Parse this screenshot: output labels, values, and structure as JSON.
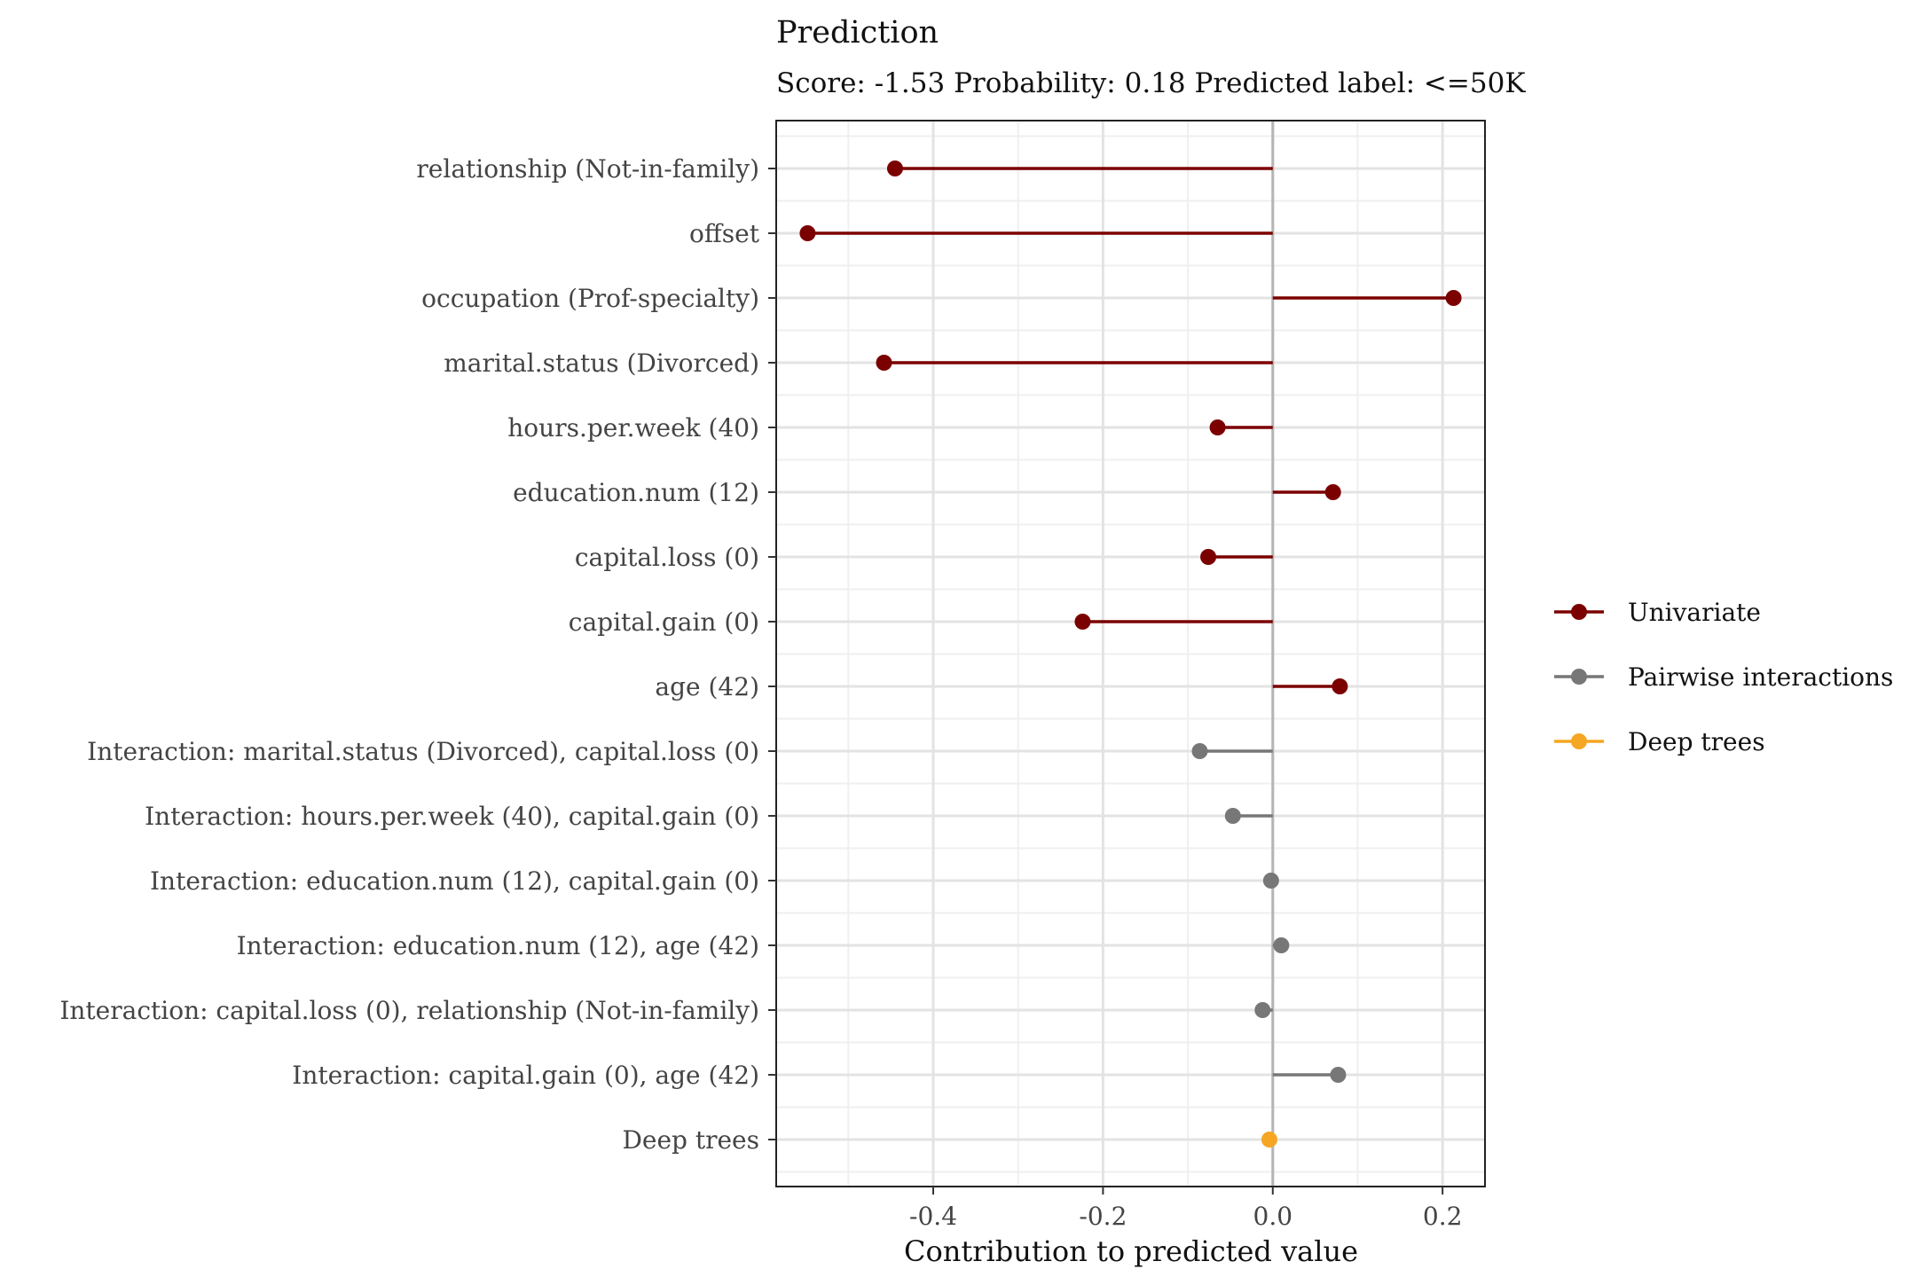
{
  "chart_data": {
    "type": "lollipop",
    "title": "Prediction",
    "subtitle": "Score: -1.53 Probability: 0.18 Predicted label: <=50K",
    "xlabel": "Contribution to predicted value",
    "ylabel": "",
    "xlim": [
      -0.585,
      0.25
    ],
    "xticks": [
      -0.4,
      -0.2,
      0.0,
      0.2
    ],
    "xtick_labels": [
      "-0.4",
      "-0.2",
      "0.0",
      "0.2"
    ],
    "grid": true,
    "legend_position": "right",
    "legend": [
      {
        "name": "Univariate",
        "color": "#7b0000"
      },
      {
        "name": "Pairwise interactions",
        "color": "#777777"
      },
      {
        "name": "Deep trees",
        "color": "#f5a623"
      }
    ],
    "features": [
      {
        "label": "relationship (Not-in-family)",
        "value": -0.445,
        "group": "Univariate"
      },
      {
        "label": "offset",
        "value": -0.548,
        "group": "Univariate"
      },
      {
        "label": "occupation (Prof-specialty)",
        "value": 0.213,
        "group": "Univariate"
      },
      {
        "label": "marital.status (Divorced)",
        "value": -0.458,
        "group": "Univariate"
      },
      {
        "label": "hours.per.week (40)",
        "value": -0.065,
        "group": "Univariate"
      },
      {
        "label": "education.num (12)",
        "value": 0.071,
        "group": "Univariate"
      },
      {
        "label": "capital.loss (0)",
        "value": -0.076,
        "group": "Univariate"
      },
      {
        "label": "capital.gain (0)",
        "value": -0.224,
        "group": "Univariate"
      },
      {
        "label": "age (42)",
        "value": 0.079,
        "group": "Univariate"
      },
      {
        "label": "Interaction: marital.status (Divorced), capital.loss (0)",
        "value": -0.086,
        "group": "Pairwise interactions"
      },
      {
        "label": "Interaction: hours.per.week (40), capital.gain (0)",
        "value": -0.047,
        "group": "Pairwise interactions"
      },
      {
        "label": "Interaction: education.num (12), capital.gain (0)",
        "value": -0.002,
        "group": "Pairwise interactions"
      },
      {
        "label": "Interaction: education.num (12), age (42)",
        "value": 0.01,
        "group": "Pairwise interactions"
      },
      {
        "label": "Interaction: capital.loss (0), relationship (Not-in-family)",
        "value": -0.012,
        "group": "Pairwise interactions"
      },
      {
        "label": "Interaction: capital.gain (0), age (42)",
        "value": 0.077,
        "group": "Pairwise interactions"
      },
      {
        "label": "Deep trees",
        "value": -0.004,
        "group": "Deep trees"
      }
    ]
  }
}
